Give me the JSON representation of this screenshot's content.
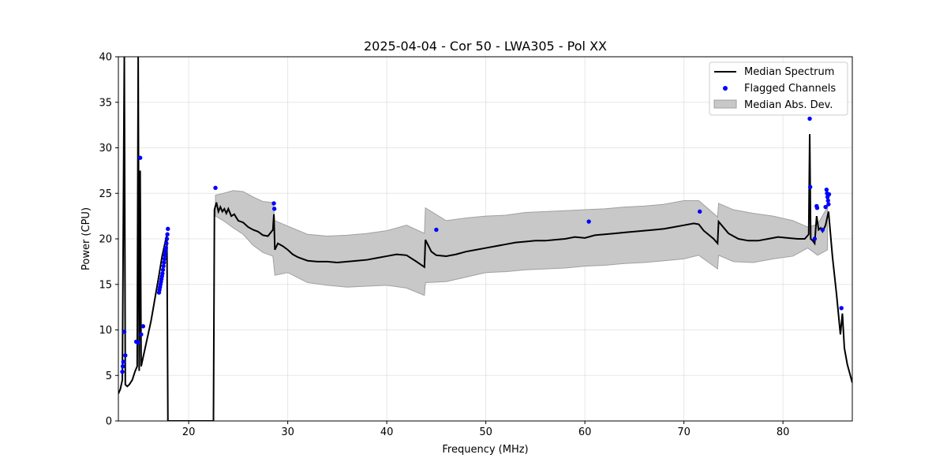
{
  "chart_data": {
    "type": "line",
    "title": "2025-04-04 - Cor 50 - LWA305 - Pol XX",
    "xlabel": "Frequency (MHz)",
    "ylabel": "Power (CPU)",
    "xlim": [
      12.9,
      87.0
    ],
    "ylim": [
      0,
      40
    ],
    "xticks": [
      20,
      30,
      40,
      50,
      60,
      70,
      80
    ],
    "yticks": [
      0,
      5,
      10,
      15,
      20,
      25,
      30,
      35,
      40
    ],
    "grid": true,
    "legend": {
      "position": "top-right",
      "entries": [
        "Median Spectrum",
        "Flagged Channels",
        "Median Abs. Dev."
      ]
    },
    "colors": {
      "median": "#000000",
      "flagged": "#0000ff",
      "mad_fill": "#c8c8c8",
      "mad_edge": "#a0a0a0"
    },
    "series": [
      {
        "name": "Median Spectrum",
        "x": [
          12.9,
          13.1,
          13.3,
          13.5,
          13.6,
          13.8,
          14.0,
          14.3,
          14.6,
          14.8,
          14.9,
          15.0,
          15.1,
          15.2,
          15.3,
          15.5,
          15.8,
          16.2,
          16.6,
          17.0,
          17.3,
          17.6,
          17.8,
          17.9,
          18.0,
          19.0,
          20.0,
          21.0,
          22.0,
          22.5,
          22.6,
          22.8,
          23.0,
          23.2,
          23.4,
          23.6,
          23.8,
          24.0,
          24.3,
          24.6,
          25.0,
          25.5,
          26.0,
          26.5,
          27.0,
          27.5,
          28.0,
          28.5,
          28.6,
          28.7,
          29.0,
          29.5,
          30.0,
          30.5,
          31.0,
          31.5,
          32.0,
          33.0,
          34.0,
          35.0,
          36.0,
          37.0,
          38.0,
          39.0,
          40.0,
          41.0,
          42.0,
          43.0,
          43.8,
          43.9,
          44.5,
          45.0,
          46.0,
          47.0,
          48.0,
          49.0,
          50.0,
          51.0,
          52.0,
          53.0,
          54.0,
          55.0,
          56.0,
          57.0,
          58.0,
          59.0,
          60.0,
          61.0,
          62.0,
          63.0,
          64.0,
          65.0,
          66.0,
          67.0,
          68.0,
          69.0,
          70.0,
          71.0,
          71.5,
          72.0,
          73.0,
          73.4,
          73.5,
          74.5,
          75.5,
          76.5,
          77.5,
          78.5,
          79.5,
          80.5,
          81.5,
          82.2,
          82.6,
          82.7,
          82.8,
          83.0,
          83.2,
          83.4,
          83.6,
          83.8,
          84.0,
          84.3,
          84.6,
          85.0,
          85.4,
          85.8,
          86.0,
          86.2,
          86.5,
          86.8,
          87.0
        ],
        "values": [
          3.0,
          3.5,
          4.5,
          40.0,
          4.0,
          3.8,
          4.0,
          4.5,
          5.5,
          6.0,
          40.0,
          5.5,
          27.5,
          6.0,
          6.5,
          7.5,
          9.0,
          11.0,
          13.5,
          16.0,
          18.0,
          19.5,
          20.5,
          0.0,
          0.0,
          0.0,
          0.0,
          0.0,
          0.0,
          0.0,
          23.2,
          24.0,
          23.0,
          23.5,
          23.0,
          23.3,
          22.8,
          23.3,
          22.5,
          22.7,
          22.0,
          21.8,
          21.3,
          21.0,
          20.8,
          20.4,
          20.3,
          21.0,
          22.7,
          18.8,
          19.5,
          19.2,
          18.8,
          18.3,
          18.0,
          17.8,
          17.6,
          17.5,
          17.5,
          17.4,
          17.5,
          17.6,
          17.7,
          17.9,
          18.1,
          18.3,
          18.2,
          17.5,
          16.9,
          19.9,
          18.6,
          18.2,
          18.1,
          18.3,
          18.6,
          18.8,
          19.0,
          19.2,
          19.4,
          19.6,
          19.7,
          19.8,
          19.8,
          19.9,
          20.0,
          20.2,
          20.1,
          20.4,
          20.5,
          20.6,
          20.7,
          20.8,
          20.9,
          21.0,
          21.1,
          21.3,
          21.5,
          21.7,
          21.6,
          20.9,
          20.0,
          19.5,
          21.9,
          20.6,
          20.0,
          19.8,
          19.8,
          20.0,
          20.2,
          20.1,
          20.0,
          20.0,
          20.5,
          31.5,
          20.0,
          19.8,
          19.5,
          22.5,
          21.0,
          21.2,
          20.8,
          21.5,
          23.0,
          18.0,
          14.0,
          9.5,
          11.8,
          8.0,
          6.2,
          5.0,
          4.2
        ]
      },
      {
        "name": "Median Abs. Dev.",
        "x": [
          22.7,
          23.5,
          24.5,
          25.5,
          26.5,
          27.5,
          28.5,
          28.7,
          30.0,
          32.0,
          34.0,
          36.0,
          38.0,
          40.0,
          42.0,
          43.8,
          43.9,
          46.0,
          48.0,
          50.0,
          52.0,
          54.0,
          56.0,
          58.0,
          60.0,
          62.0,
          64.0,
          66.0,
          68.0,
          70.0,
          71.5,
          73.4,
          73.5,
          75.0,
          77.0,
          79.0,
          81.0,
          82.5,
          83.5,
          84.5
        ],
        "upper": [
          24.8,
          25.0,
          25.3,
          25.2,
          24.6,
          24.1,
          24.0,
          22.0,
          21.4,
          20.5,
          20.3,
          20.4,
          20.6,
          20.9,
          21.5,
          20.6,
          23.4,
          22.0,
          22.3,
          22.5,
          22.6,
          22.9,
          23.0,
          23.1,
          23.2,
          23.3,
          23.5,
          23.6,
          23.8,
          24.2,
          24.2,
          22.4,
          23.9,
          23.2,
          22.8,
          22.5,
          22.0,
          21.3,
          21.6,
          23.5
        ],
        "lower": [
          22.5,
          22.0,
          21.2,
          20.5,
          19.3,
          18.5,
          18.1,
          16.0,
          16.3,
          15.2,
          14.9,
          14.7,
          14.8,
          14.9,
          14.6,
          13.8,
          15.2,
          15.3,
          15.8,
          16.3,
          16.4,
          16.6,
          16.7,
          16.8,
          17.0,
          17.1,
          17.3,
          17.4,
          17.6,
          17.8,
          18.2,
          16.7,
          18.2,
          17.5,
          17.4,
          17.8,
          18.1,
          19.0,
          18.2,
          18.8
        ]
      },
      {
        "name": "Flagged Channels",
        "type": "scatter",
        "x": [
          13.3,
          13.35,
          13.4,
          13.5,
          13.6,
          14.7,
          14.9,
          15.1,
          15.2,
          15.4,
          17.0,
          17.05,
          17.1,
          17.15,
          17.2,
          17.25,
          17.3,
          17.35,
          17.4,
          17.45,
          17.5,
          17.55,
          17.6,
          17.65,
          17.7,
          17.75,
          17.8,
          17.85,
          17.9,
          22.7,
          28.6,
          28.65,
          45.0,
          60.4,
          71.6,
          82.7,
          82.75,
          83.2,
          83.4,
          83.45,
          84.0,
          84.3,
          84.4,
          84.45,
          84.5,
          84.55,
          84.6,
          84.65,
          85.9
        ],
        "values": [
          5.4,
          6.0,
          6.5,
          9.8,
          7.2,
          8.7,
          8.6,
          28.9,
          9.5,
          10.4,
          14.1,
          14.4,
          14.7,
          15.0,
          15.3,
          15.6,
          15.9,
          16.2,
          16.6,
          17.0,
          17.4,
          17.8,
          18.2,
          18.6,
          19.0,
          19.5,
          20.0,
          20.5,
          21.1,
          25.6,
          23.9,
          23.3,
          21.0,
          21.9,
          23.0,
          33.2,
          25.7,
          20.0,
          23.6,
          23.4,
          21.0,
          23.5,
          25.4,
          25.0,
          24.6,
          24.2,
          23.8,
          24.9,
          12.4
        ]
      }
    ]
  }
}
